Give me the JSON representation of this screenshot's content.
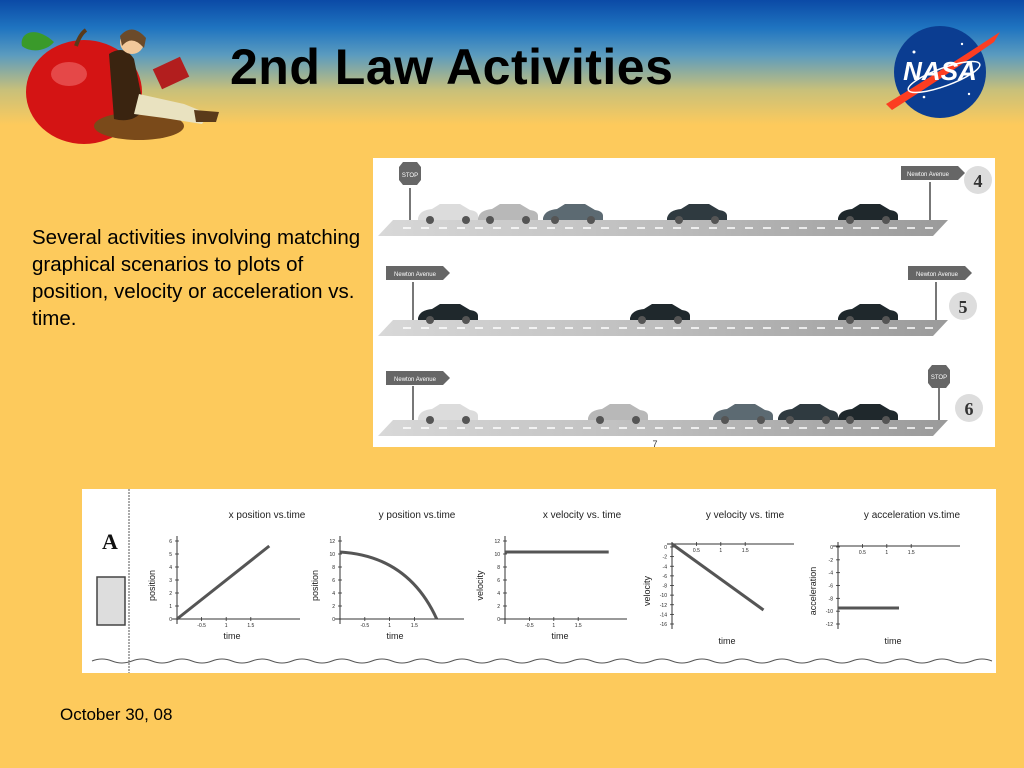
{
  "slide": {
    "title": "2nd Law Activities",
    "body": "Several activities involving matching graphical scenarios to plots of position, velocity or acceleration vs. time.",
    "date": "October 30, 08"
  },
  "logos": {
    "nasa_text": "NASA"
  },
  "road_scenes": [
    {
      "number": "4",
      "stop_label": "STOP",
      "sign_labels": [
        "Newton Avenue"
      ]
    },
    {
      "number": "5",
      "sign_labels": [
        "Newton Avenue",
        "Newton Avenue"
      ]
    },
    {
      "number": "6",
      "stop_label": "STOP",
      "sign_labels": [
        "Newton Avenue"
      ]
    }
  ],
  "page_mark": "7",
  "graph_set": {
    "label": "A",
    "graphs": [
      {
        "title": "x position vs.time",
        "xlabel": "time",
        "ylabel": "position",
        "yticks": [
          "6",
          "5",
          "4",
          "3",
          "2",
          "1",
          "0"
        ],
        "xticks": [
          "-0.5",
          "1",
          "1.5"
        ]
      },
      {
        "title": "y position vs.time",
        "xlabel": "time",
        "ylabel": "position",
        "yticks": [
          "12",
          "10",
          "8",
          "6",
          "4",
          "2",
          "0"
        ],
        "xticks": [
          "-0.5",
          "1",
          "1.5"
        ]
      },
      {
        "title": "x velocity vs. time",
        "xlabel": "time",
        "ylabel": "velocity",
        "yticks": [
          "12",
          "10",
          "8",
          "6",
          "4",
          "2",
          "0"
        ],
        "xticks": [
          "-0.5",
          "1",
          "1.5"
        ]
      },
      {
        "title": "y velocity vs. time",
        "xlabel": "time",
        "ylabel": "velocity",
        "yticks": [
          "0",
          "-2",
          "-4",
          "-6",
          "-8",
          "-10",
          "-12",
          "-14",
          "-16"
        ],
        "xticks": [
          "0.5",
          "1",
          "1.5"
        ]
      },
      {
        "title": "y acceleration vs.time",
        "xlabel": "time",
        "ylabel": "acceleration",
        "yticks": [
          "0",
          "-2",
          "-4",
          "-6",
          "-8",
          "-10",
          "-12"
        ],
        "xticks": [
          "0.5",
          "1",
          "1.5"
        ]
      }
    ]
  },
  "colors": {
    "background": "#fdca5c",
    "header_blue": "#0b4aa6",
    "nasa_blue": "#0b3d91",
    "nasa_red": "#fc3d21"
  }
}
